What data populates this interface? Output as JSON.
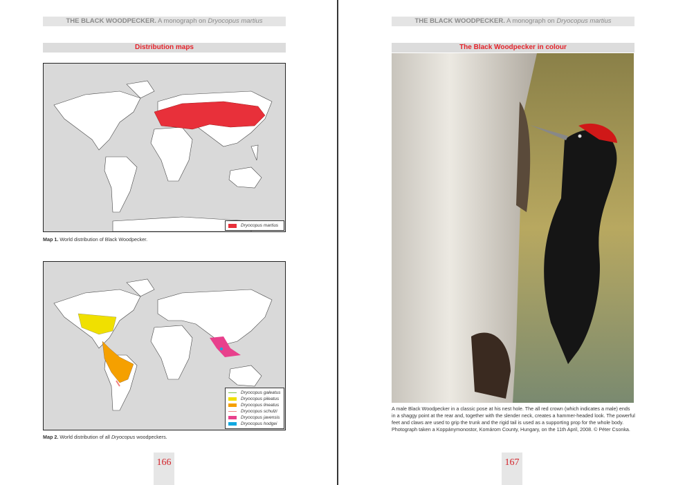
{
  "left_page": {
    "header": {
      "bold": "THE BLACK WOODPECKER.",
      "rest": " A monograph on ",
      "italic": "Dryocopus martius"
    },
    "section_title": "Distribution maps",
    "map1": {
      "legend": [
        {
          "label": "Dryocopus martius",
          "color": "#e8303a"
        }
      ]
    },
    "map1_caption": {
      "label": "Map 1.",
      "text": " World distribution of Black Woodpecker."
    },
    "map2": {
      "legend": [
        {
          "label": "Dryocopus galeatus",
          "color": "#7cc242"
        },
        {
          "label": "Dryocopus pileatus",
          "color": "#f0e000"
        },
        {
          "label": "Dryocopus lineatus",
          "color": "#f5a000"
        },
        {
          "label": "Dryocopus schulzi",
          "color": "#f08080"
        },
        {
          "label": "Dryocopus javensis",
          "color": "#e8408c"
        },
        {
          "label": "Dryocopus hodgei",
          "color": "#10a8e0"
        }
      ]
    },
    "map2_caption": {
      "label": "Map 2.",
      "text": " World distribution of all ",
      "italic": "Dryocopus",
      "tail": " woodpeckers."
    },
    "page_number": "166"
  },
  "right_page": {
    "header": {
      "bold": "THE BLACK WOODPECKER.",
      "rest": " A monograph on ",
      "italic": "Dryocopus martius"
    },
    "section_title": "The Black Woodpecker in colour",
    "photo_caption": "A male Black Woodpecker in a classic pose at his nest hole. The all red crown (which indicates a male) ends in a shaggy point at the rear and, together with the slender neck, creates a hammer-headed look. The powerful feet and claws are used to grip the trunk and the rigid tail is used as a supporting prop for the whole body. Photograph taken a Koppánymonostor, Komárom County, Hungary, on the 11th April, 2008. © Péter Csonka.",
    "page_number": "167"
  }
}
